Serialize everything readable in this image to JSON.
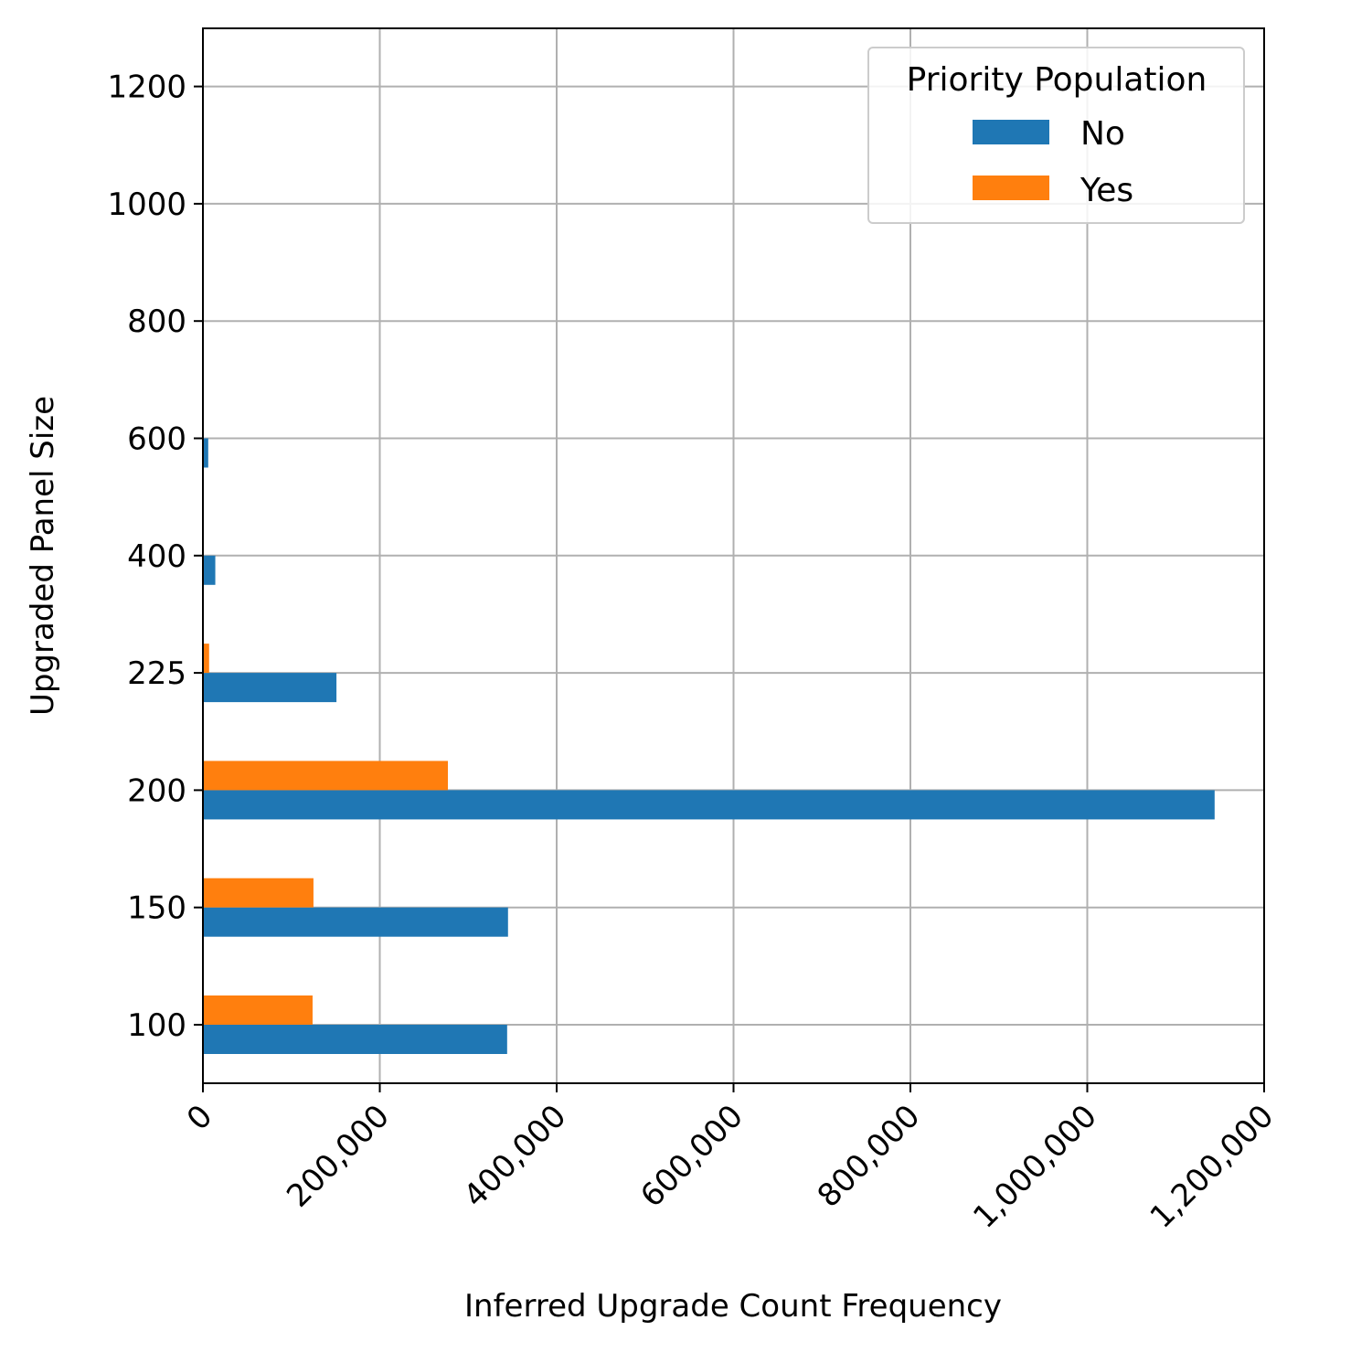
{
  "chart_data": {
    "type": "bar",
    "orientation": "horizontal",
    "title": "",
    "xlabel": "Inferred Upgrade Count Frequency",
    "ylabel": "Upgraded Panel Size",
    "categories": [
      "100",
      "150",
      "200",
      "225",
      "400",
      "600",
      "800",
      "1000",
      "1200"
    ],
    "x_ticks": [
      0,
      200000,
      400000,
      600000,
      800000,
      1000000,
      1200000
    ],
    "x_tick_labels": [
      "0",
      "200,000",
      "400,000",
      "600,000",
      "800,000",
      "1,000,000",
      "1,200,000"
    ],
    "xlim": [
      0,
      1200000
    ],
    "grid": true,
    "legend": {
      "title": "Priority Population",
      "placement": "top-right"
    },
    "series": [
      {
        "name": "No",
        "color": "#1f77b4",
        "values": [
          344000,
          345000,
          1144000,
          151000,
          14000,
          6000,
          0,
          0,
          0
        ]
      },
      {
        "name": "Yes",
        "color": "#ff7f0e",
        "values": [
          124000,
          125000,
          277000,
          7000,
          0,
          0,
          0,
          0,
          0
        ]
      }
    ]
  }
}
